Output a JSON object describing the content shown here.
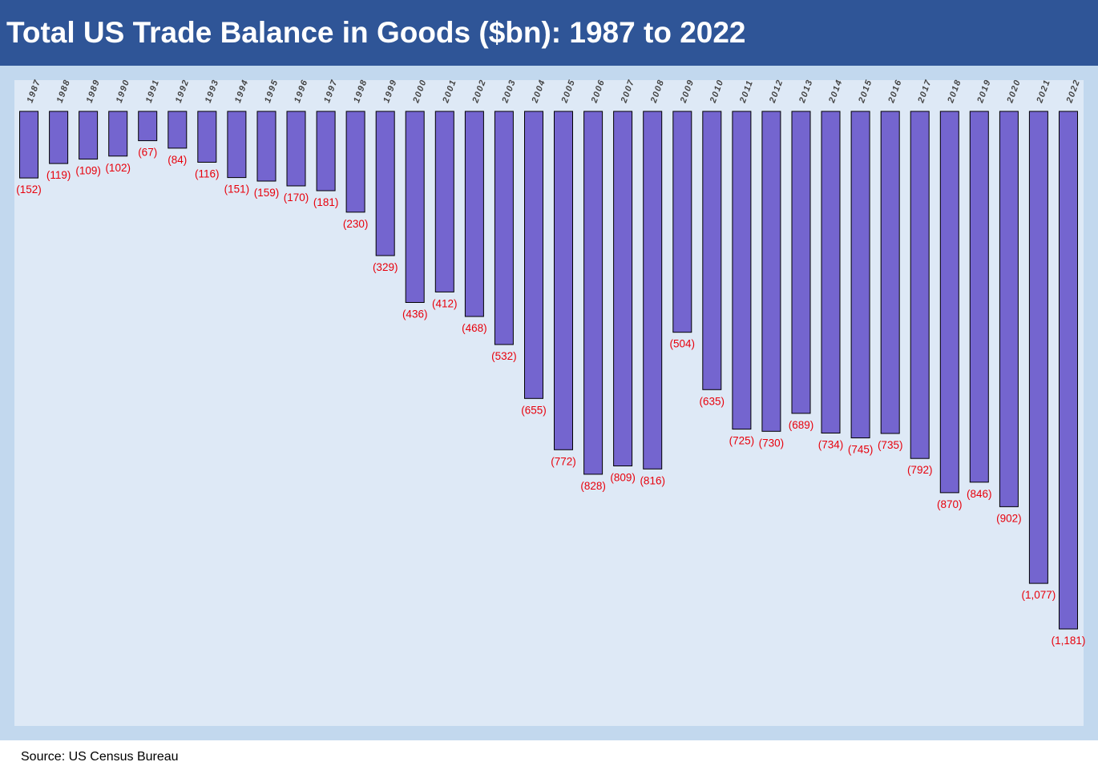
{
  "header": {
    "title": "Total US Trade Balance in Goods ($bn): 1987 to 2022"
  },
  "footer": {
    "source": "Source: US Census Bureau"
  },
  "colors": {
    "header_bg": "#2f5597",
    "bar_fill": "#7465cf",
    "label_color": "#e8000b",
    "plot_bg": "#dee9f6",
    "frame_bg": "#c2d8ee"
  },
  "chart_data": {
    "type": "bar",
    "title": "Total US Trade Balance in Goods ($bn): 1987 to 2022",
    "xlabel": "",
    "ylabel": "",
    "ylim": [
      -1181,
      0
    ],
    "grid": false,
    "categories": [
      "1987",
      "1988",
      "1989",
      "1990",
      "1991",
      "1992",
      "1993",
      "1994",
      "1995",
      "1996",
      "1997",
      "1998",
      "1999",
      "2000",
      "2001",
      "2002",
      "2003",
      "2004",
      "2005",
      "2006",
      "2007",
      "2008",
      "2009",
      "2010",
      "2011",
      "2012",
      "2013",
      "2014",
      "2015",
      "2016",
      "2017",
      "2018",
      "2019",
      "2020",
      "2021",
      "2022"
    ],
    "values": [
      -152,
      -119,
      -109,
      -102,
      -67,
      -84,
      -116,
      -151,
      -159,
      -170,
      -181,
      -230,
      -329,
      -436,
      -412,
      -468,
      -532,
      -655,
      -772,
      -828,
      -809,
      -816,
      -504,
      -635,
      -725,
      -730,
      -689,
      -734,
      -745,
      -735,
      -792,
      -870,
      -846,
      -902,
      -1077,
      -1181
    ],
    "labels": [
      "(152)",
      "(119)",
      "(109)",
      "(102)",
      "(67)",
      "(84)",
      "(116)",
      "(151)",
      "(159)",
      "(170)",
      "(181)",
      "(230)",
      "(329)",
      "(436)",
      "(412)",
      "(468)",
      "(532)",
      "(655)",
      "(772)",
      "(828)",
      "(809)",
      "(816)",
      "(504)",
      "(635)",
      "(725)",
      "(730)",
      "(689)",
      "(734)",
      "(745)",
      "(735)",
      "(792)",
      "(870)",
      "(846)",
      "(902)",
      "(1,077)",
      "(1,181)"
    ]
  }
}
